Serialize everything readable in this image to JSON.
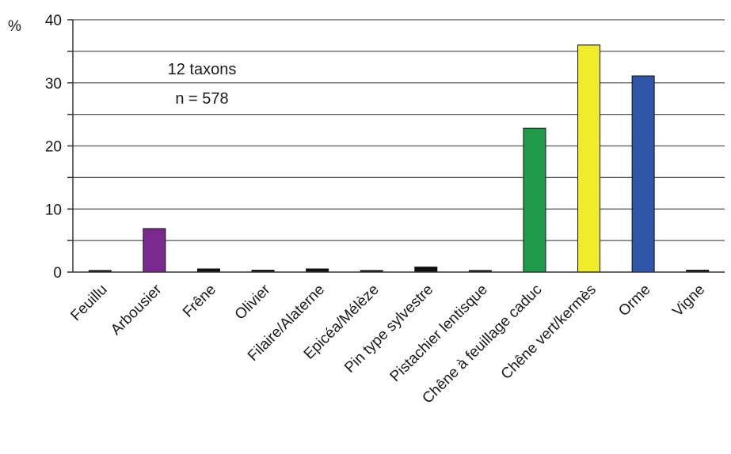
{
  "chart_data": {
    "type": "bar",
    "ylabel": "%",
    "ylim": [
      0,
      40
    ],
    "y_major_ticks": [
      0,
      10,
      20,
      30,
      40
    ],
    "y_minor_step": 5,
    "grid": true,
    "annotation": [
      "12 taxons",
      "n = 578"
    ],
    "categories": [
      "Feuillu",
      "Arbousier",
      "Frêne",
      "Olivier",
      "Filaire/Alaterne",
      "Epicéa/Mélèze",
      "Pin type sylvestre",
      "Pistachier lentisque",
      "Chêne à feuillage caduc",
      "Chêne vert/kermès",
      "Orme",
      "Vigne"
    ],
    "values": [
      0.2,
      6.9,
      0.5,
      0.3,
      0.5,
      0.2,
      0.8,
      0.2,
      22.8,
      36.0,
      31.1,
      0.3
    ],
    "colors": [
      "#111111",
      "#7a2a8e",
      "#111111",
      "#111111",
      "#111111",
      "#111111",
      "#111111",
      "#111111",
      "#1f9a48",
      "#f0ec2a",
      "#2f56a8",
      "#111111"
    ]
  }
}
